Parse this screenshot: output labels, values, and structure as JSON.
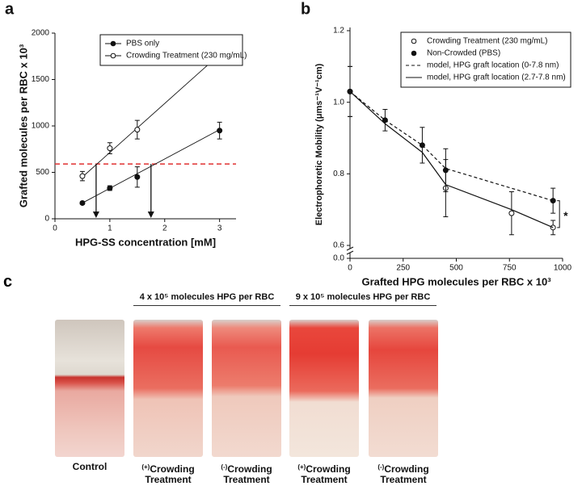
{
  "panel_labels": [
    "a",
    "b",
    "c"
  ],
  "chart_data": [
    {
      "type": "scatter",
      "x_label": "HPG-SS concentration [mM]",
      "y_label": "Grafted molecules per RBC x 10³",
      "xlim": [
        0,
        3.3
      ],
      "xticks": [
        0,
        1,
        2,
        3
      ],
      "ylim": [
        0,
        2000
      ],
      "yticks": [
        0,
        500,
        1000,
        1500,
        2000
      ],
      "legend": "upper left",
      "series": [
        {
          "name": "PBS only",
          "color": "#111111",
          "marker": "filled",
          "x": [
            0.5,
            1,
            1.5,
            3
          ],
          "values": [
            170,
            330,
            450,
            950
          ],
          "errors": [
            15,
            25,
            110,
            90
          ],
          "fit": {
            "x": [
              0.5,
              3
            ],
            "values": [
              170,
              960
            ]
          }
        },
        {
          "name": "Crowding Treatment (230 mg/mL)",
          "color": "#111111",
          "marker": "open",
          "x": [
            0.5,
            1,
            1.5,
            3
          ],
          "values": [
            460,
            760,
            960,
            1760
          ],
          "errors": [
            50,
            60,
            100,
            25
          ],
          "fit": {
            "x": [
              0.5,
              3
            ],
            "values": [
              450,
              1770
            ]
          }
        }
      ],
      "reference_line": {
        "y": 590,
        "color": "#e03030"
      },
      "arrows_x": [
        0.75,
        1.75
      ]
    },
    {
      "type": "line",
      "x_label": "Grafted HPG molecules per RBC x 10³",
      "y_label": "Electrophoretic Mobility (μms⁻¹V⁻¹cm)",
      "xlim": [
        0,
        1000
      ],
      "xticks": [
        0,
        250,
        500,
        750,
        1000
      ],
      "ylim": [
        0.6,
        1.2
      ],
      "yticks": [
        0.6,
        0.8,
        {
          "value": 1,
          "label": "1.0"
        },
        1.2
      ],
      "break_tick": {
        "value": 0,
        "label": "0.0"
      },
      "legend": "upper right",
      "annotation": "*",
      "series": [
        {
          "name": "Crowding Treatment (230 mg/mL)",
          "color": "#111111",
          "marker": "open",
          "x": [
            0,
            450,
            760,
            955
          ],
          "values": [
            1.03,
            0.76,
            0.69,
            0.65
          ],
          "errors": [
            0.07,
            0.08,
            0.06,
            0.02
          ]
        },
        {
          "name": "Non-Crowded (PBS)",
          "color": "#111111",
          "marker": "filled",
          "x": [
            0,
            165,
            340,
            450,
            955
          ],
          "values": [
            1.03,
            0.95,
            0.88,
            0.81,
            0.725
          ],
          "errors": [
            0.07,
            0.03,
            0.05,
            0.06,
            0.035
          ]
        },
        {
          "name": "model, HPG graft location (0-7.8 nm)",
          "color": "#111111",
          "line": "dashed",
          "x": [
            0,
            165,
            340,
            450,
            955
          ],
          "values": [
            1.03,
            0.95,
            0.88,
            0.815,
            0.725
          ]
        },
        {
          "name": "model, HPG graft location (2.7-7.8 nm)",
          "color": "#111111",
          "line": "solid",
          "x": [
            0,
            165,
            340,
            450,
            760,
            955
          ],
          "values": [
            1.03,
            0.94,
            0.86,
            0.77,
            0.7,
            0.65
          ]
        }
      ]
    }
  ],
  "photo_panel": {
    "groups": [
      "4 x 10⁵ molecules HPG per RBC",
      "9 x 10⁵ molecules HPG per RBC"
    ],
    "samples": [
      {
        "label": "Control"
      },
      {
        "sign": "(+)",
        "label": "Crowding Treatment"
      },
      {
        "sign": "(-)",
        "label": "Crowding Treatment"
      },
      {
        "sign": "(+)",
        "label": "Crowding Treatment"
      },
      {
        "sign": "(-)",
        "label": "Crowding Treatment"
      }
    ]
  }
}
